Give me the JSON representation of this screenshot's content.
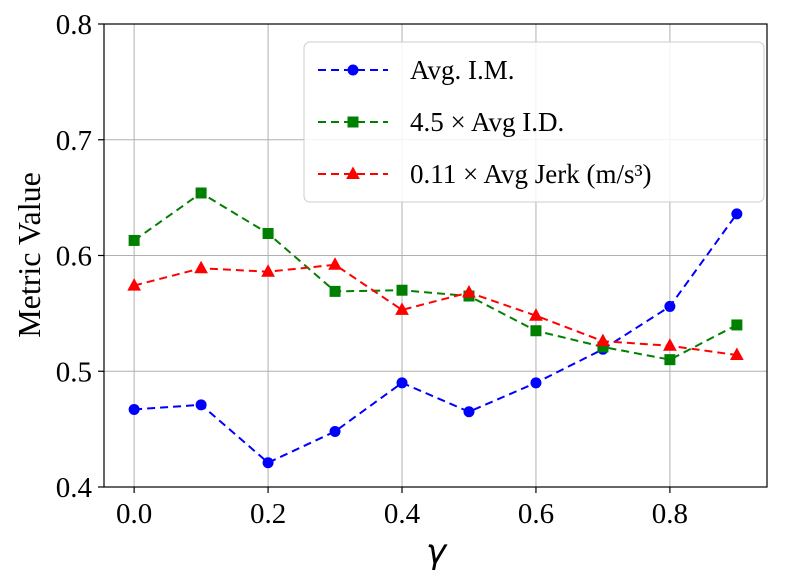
{
  "chart_data": {
    "type": "line",
    "title": "",
    "xlabel": "γ",
    "ylabel": "Metric Value",
    "xlim": [
      -0.045,
      0.945
    ],
    "ylim": [
      0.4,
      0.8
    ],
    "xticks": [
      "0.0",
      "0.2",
      "0.4",
      "0.6",
      "0.8"
    ],
    "xtick_values": [
      0.0,
      0.2,
      0.4,
      0.6,
      0.8
    ],
    "yticks": [
      "0.4",
      "0.5",
      "0.6",
      "0.7",
      "0.8"
    ],
    "ytick_values": [
      0.4,
      0.5,
      0.6,
      0.7,
      0.8
    ],
    "grid": true,
    "legend_position": "top-right",
    "x": [
      0.0,
      0.1,
      0.2,
      0.3,
      0.4,
      0.5,
      0.6,
      0.7,
      0.8,
      0.9
    ],
    "series": [
      {
        "name": "Avg. I.M.",
        "color": "#0000ff",
        "marker": "circle",
        "linestyle": "dashed",
        "values": [
          0.467,
          0.471,
          0.421,
          0.448,
          0.49,
          0.465,
          0.49,
          0.519,
          0.556,
          0.636
        ]
      },
      {
        "name": "4.5 × Avg I.D.",
        "color": "#008000",
        "marker": "square",
        "linestyle": "dashed",
        "values": [
          0.613,
          0.654,
          0.619,
          0.569,
          0.57,
          0.565,
          0.535,
          0.521,
          0.51,
          0.54
        ]
      },
      {
        "name": "0.11 × Avg Jerk (m/s³)",
        "color": "#ff0000",
        "marker": "triangle",
        "linestyle": "dashed",
        "values": [
          0.574,
          0.589,
          0.586,
          0.592,
          0.553,
          0.568,
          0.548,
          0.526,
          0.522,
          0.514
        ]
      }
    ]
  }
}
